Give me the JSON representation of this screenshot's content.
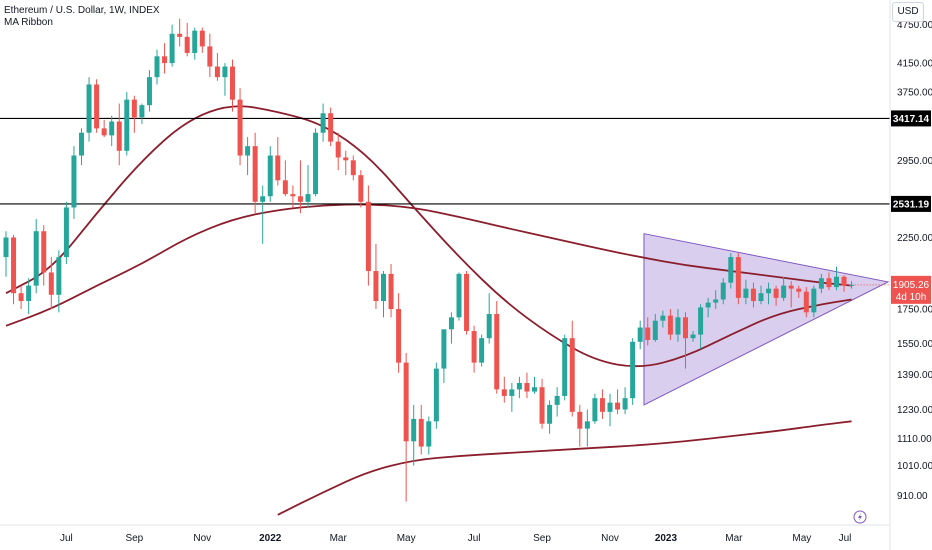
{
  "legend": {
    "title": "Ethereum / U.S. Dollar, 1W, INDEX",
    "indicator": "MA Ribbon"
  },
  "currency": "USD",
  "price_label": {
    "value": "1905.26",
    "countdown": "4d 10h"
  },
  "colors": {
    "up": "#26a69a",
    "down": "#ef5350",
    "ma": "#8b1e2d",
    "triangle_fill": "#b39ddb",
    "triangle_stroke": "#7e57c2",
    "hline": "#000000",
    "price_tag": "#ef5350"
  },
  "icons": [
    "lightning-icon"
  ],
  "chart_data": {
    "type": "candlestick",
    "symbol": "Ethereum / U.S. Dollar, 1W, INDEX",
    "x_labels": [
      "Jul",
      "Sep",
      "Nov",
      "2022",
      "Mar",
      "May",
      "Jul",
      "Sep",
      "Nov",
      "2023",
      "Mar",
      "May",
      "Jul"
    ],
    "x_label_bold": [
      "2022",
      "2023"
    ],
    "y_ticks": [
      910,
      1010,
      1110,
      1230,
      1390,
      1550,
      1750,
      2250,
      2950,
      3750,
      4150,
      4750
    ],
    "y_range": [
      820,
      5000
    ],
    "y_scale": "log",
    "horizontal_lines": [
      3417.14,
      2531.19
    ],
    "horizontal_line_labels": [
      "3417.14",
      "2531.19"
    ],
    "triangle": {
      "apex_high": 2280,
      "apex_low": 1250,
      "end_point": 1925
    },
    "candles": [
      [
        2100,
        2300,
        1960,
        2250
      ],
      [
        2250,
        2270,
        1780,
        1850
      ],
      [
        1850,
        1900,
        1750,
        1800
      ],
      [
        1800,
        1950,
        1720,
        1900
      ],
      [
        1900,
        2400,
        1850,
        2300
      ],
      [
        2300,
        2350,
        1900,
        1990
      ],
      [
        1990,
        2100,
        1750,
        1840
      ],
      [
        1840,
        2150,
        1730,
        2100
      ],
      [
        2100,
        2550,
        2050,
        2500
      ],
      [
        2500,
        3100,
        2400,
        3000
      ],
      [
        3000,
        3300,
        2900,
        3250
      ],
      [
        3250,
        3950,
        3150,
        3850
      ],
      [
        3850,
        3920,
        3250,
        3300
      ],
      [
        3300,
        3400,
        3200,
        3220
      ],
      [
        3220,
        3450,
        3100,
        3380
      ],
      [
        3380,
        3600,
        2900,
        3050
      ],
      [
        3050,
        3750,
        3000,
        3650
      ],
      [
        3650,
        3700,
        3250,
        3430
      ],
      [
        3430,
        3600,
        3350,
        3580
      ],
      [
        3580,
        4050,
        3500,
        3950
      ],
      [
        3950,
        4350,
        3850,
        4250
      ],
      [
        4250,
        4450,
        4000,
        4150
      ],
      [
        4150,
        4750,
        4100,
        4600
      ],
      [
        4600,
        4850,
        4400,
        4550
      ],
      [
        4550,
        4780,
        4250,
        4300
      ],
      [
        4300,
        4700,
        4200,
        4650
      ],
      [
        4650,
        4700,
        4300,
        4400
      ],
      [
        4400,
        4600,
        3950,
        4100
      ],
      [
        4100,
        4300,
        3900,
        3950
      ],
      [
        3950,
        4150,
        3700,
        4100
      ],
      [
        4100,
        4200,
        3500,
        3650
      ],
      [
        3650,
        3800,
        2900,
        3000
      ],
      [
        3000,
        3200,
        2800,
        3100
      ],
      [
        3100,
        3250,
        2450,
        2550
      ],
      [
        2550,
        2700,
        2200,
        2600
      ],
      [
        2600,
        3100,
        2550,
        3000
      ],
      [
        3000,
        3200,
        2700,
        2750
      ],
      [
        2750,
        2950,
        2600,
        2620
      ],
      [
        2620,
        2700,
        2500,
        2600
      ],
      [
        2600,
        2950,
        2450,
        2550
      ],
      [
        2550,
        2900,
        2500,
        2620
      ],
      [
        2620,
        3300,
        2600,
        3250
      ],
      [
        3250,
        3600,
        3150,
        3480
      ],
      [
        3480,
        3550,
        3100,
        3150
      ],
      [
        3150,
        3250,
        2850,
        2980
      ],
      [
        2980,
        3050,
        2800,
        2950
      ],
      [
        2950,
        3000,
        2750,
        2800
      ],
      [
        2800,
        2850,
        2500,
        2550
      ],
      [
        2550,
        2700,
        1900,
        2000
      ],
      [
        2000,
        2200,
        1750,
        1800
      ],
      [
        1800,
        2000,
        1700,
        1980
      ],
      [
        1980,
        2050,
        1700,
        1750
      ],
      [
        1750,
        1850,
        1400,
        1450
      ],
      [
        1450,
        1500,
        890,
        1100
      ],
      [
        1100,
        1250,
        1010,
        1190
      ],
      [
        1190,
        1250,
        1050,
        1080
      ],
      [
        1080,
        1200,
        1050,
        1180
      ],
      [
        1180,
        1450,
        1150,
        1420
      ],
      [
        1420,
        1600,
        1350,
        1630
      ],
      [
        1630,
        1730,
        1550,
        1700
      ],
      [
        1700,
        1990,
        1680,
        1980
      ],
      [
        1980,
        2000,
        1600,
        1620
      ],
      [
        1620,
        1650,
        1400,
        1450
      ],
      [
        1450,
        1600,
        1430,
        1580
      ],
      [
        1580,
        1850,
        1550,
        1720
      ],
      [
        1720,
        1800,
        1300,
        1320
      ],
      [
        1320,
        1380,
        1260,
        1290
      ],
      [
        1290,
        1350,
        1220,
        1320
      ],
      [
        1320,
        1380,
        1280,
        1350
      ],
      [
        1350,
        1400,
        1280,
        1310
      ],
      [
        1310,
        1380,
        1300,
        1330
      ],
      [
        1330,
        1370,
        1150,
        1170
      ],
      [
        1170,
        1270,
        1130,
        1250
      ],
      [
        1250,
        1330,
        1200,
        1290
      ],
      [
        1290,
        1600,
        1270,
        1580
      ],
      [
        1580,
        1680,
        1200,
        1220
      ],
      [
        1220,
        1250,
        1080,
        1150
      ],
      [
        1150,
        1230,
        1080,
        1180
      ],
      [
        1180,
        1300,
        1170,
        1280
      ],
      [
        1280,
        1320,
        1190,
        1220
      ],
      [
        1220,
        1300,
        1160,
        1260
      ],
      [
        1260,
        1320,
        1210,
        1230
      ],
      [
        1230,
        1330,
        1210,
        1280
      ],
      [
        1280,
        1580,
        1250,
        1560
      ],
      [
        1560,
        1680,
        1520,
        1640
      ],
      [
        1640,
        1700,
        1540,
        1570
      ],
      [
        1570,
        1720,
        1560,
        1680
      ],
      [
        1680,
        1740,
        1640,
        1710
      ],
      [
        1710,
        1750,
        1570,
        1600
      ],
      [
        1600,
        1750,
        1560,
        1700
      ],
      [
        1700,
        1730,
        1420,
        1580
      ],
      [
        1580,
        1620,
        1560,
        1600
      ],
      [
        1600,
        1780,
        1520,
        1760
      ],
      [
        1760,
        1820,
        1700,
        1790
      ],
      [
        1790,
        1870,
        1750,
        1810
      ],
      [
        1810,
        1950,
        1780,
        1920
      ],
      [
        1920,
        2130,
        1880,
        2100
      ],
      [
        2100,
        2130,
        1780,
        1820
      ],
      [
        1820,
        1940,
        1780,
        1880
      ],
      [
        1880,
        1920,
        1760,
        1800
      ],
      [
        1800,
        1900,
        1780,
        1850
      ],
      [
        1850,
        1920,
        1780,
        1880
      ],
      [
        1880,
        1900,
        1770,
        1820
      ],
      [
        1820,
        1960,
        1800,
        1900
      ],
      [
        1900,
        1930,
        1760,
        1880
      ],
      [
        1880,
        1900,
        1820,
        1860
      ],
      [
        1860,
        1890,
        1700,
        1730
      ],
      [
        1730,
        1900,
        1700,
        1880
      ],
      [
        1880,
        1980,
        1850,
        1950
      ],
      [
        1950,
        1990,
        1870,
        1890
      ],
      [
        1890,
        2030,
        1870,
        1960
      ],
      [
        1960,
        1970,
        1860,
        1900
      ],
      [
        1900,
        1930,
        1880,
        1905
      ]
    ],
    "ma_short": [
      [
        0,
        1850
      ],
      [
        6,
        2010
      ],
      [
        12,
        2450
      ],
      [
        18,
        2950
      ],
      [
        24,
        3400
      ],
      [
        30,
        3600
      ],
      [
        36,
        3500
      ],
      [
        42,
        3350
      ],
      [
        48,
        3000
      ],
      [
        54,
        2500
      ],
      [
        60,
        2100
      ],
      [
        66,
        1800
      ],
      [
        72,
        1600
      ],
      [
        78,
        1460
      ],
      [
        84,
        1420
      ],
      [
        90,
        1480
      ],
      [
        96,
        1600
      ],
      [
        102,
        1720
      ],
      [
        108,
        1780
      ],
      [
        112,
        1810
      ]
    ],
    "ma_medium": [
      [
        0,
        1650
      ],
      [
        6,
        1750
      ],
      [
        12,
        1900
      ],
      [
        18,
        2050
      ],
      [
        24,
        2250
      ],
      [
        30,
        2400
      ],
      [
        36,
        2480
      ],
      [
        42,
        2520
      ],
      [
        48,
        2530
      ],
      [
        54,
        2500
      ],
      [
        60,
        2420
      ],
      [
        66,
        2330
      ],
      [
        72,
        2250
      ],
      [
        78,
        2170
      ],
      [
        84,
        2100
      ],
      [
        90,
        2040
      ],
      [
        96,
        2000
      ],
      [
        102,
        1960
      ],
      [
        108,
        1920
      ],
      [
        112,
        1900
      ]
    ],
    "ma_long": [
      [
        36,
        850
      ],
      [
        42,
        920
      ],
      [
        48,
        990
      ],
      [
        54,
        1030
      ],
      [
        60,
        1045
      ],
      [
        66,
        1055
      ],
      [
        72,
        1065
      ],
      [
        78,
        1075
      ],
      [
        84,
        1085
      ],
      [
        90,
        1100
      ],
      [
        96,
        1120
      ],
      [
        102,
        1140
      ],
      [
        108,
        1165
      ],
      [
        112,
        1180
      ]
    ]
  }
}
